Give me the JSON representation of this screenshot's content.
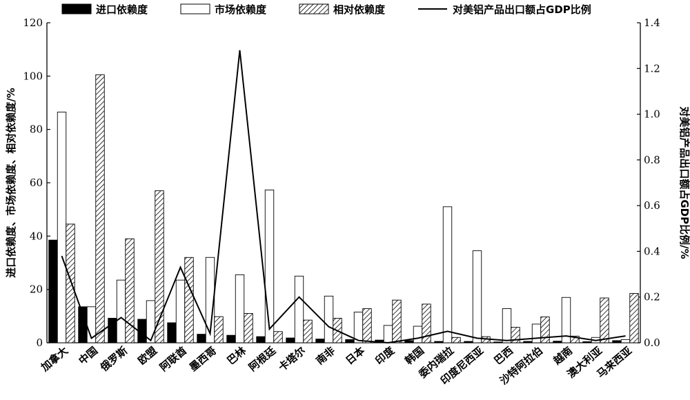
{
  "chart_data": {
    "type": "bar",
    "categories": [
      "加拿大",
      "中国",
      "俄罗斯",
      "欧盟",
      "阿联酋",
      "墨西哥",
      "巴林",
      "阿根廷",
      "卡塔尔",
      "南非",
      "日本",
      "印度",
      "韩国",
      "委内瑞拉",
      "印度尼西亚",
      "巴西",
      "沙特阿拉伯",
      "越南",
      "澳大利亚",
      "马来西亚"
    ],
    "series": [
      {
        "name": "进口依赖度",
        "style": "solid-black",
        "axis": "left",
        "values": [
          38.5,
          13.5,
          9.2,
          8.8,
          7.5,
          3.2,
          2.8,
          2.3,
          1.8,
          1.4,
          1.2,
          1.0,
          0.8,
          0.5,
          0.5,
          0.3,
          0.5,
          0.6,
          0.4,
          0.8
        ]
      },
      {
        "name": "市场依赖度",
        "style": "hollow",
        "axis": "left",
        "values": [
          86.5,
          13.5,
          23.5,
          15.8,
          23.5,
          32.0,
          25.5,
          57.3,
          25.0,
          17.5,
          11.5,
          6.5,
          6.2,
          51.0,
          34.5,
          12.8,
          7.0,
          17.0,
          2.0,
          1.2
        ]
      },
      {
        "name": "相对依赖度",
        "style": "hatched",
        "axis": "left",
        "values": [
          44.5,
          100.5,
          39.0,
          57.0,
          32.0,
          9.8,
          11.0,
          4.2,
          8.5,
          9.2,
          12.8,
          16.0,
          14.5,
          2.0,
          2.3,
          5.8,
          9.7,
          2.5,
          16.8,
          18.5
        ]
      },
      {
        "name": "对美铝产品出口额占GDP比例",
        "style": "line",
        "axis": "right",
        "values": [
          0.38,
          0.02,
          0.11,
          0.01,
          0.33,
          0.04,
          1.28,
          0.06,
          0.2,
          0.07,
          0.01,
          0.0,
          0.02,
          0.05,
          0.02,
          0.01,
          0.02,
          0.03,
          0.01,
          0.03
        ]
      }
    ],
    "ylabel": "进口依赖度、市场依赖度、相对依赖度/%",
    "y2label": "对美铝产品出口额占GDP比例/%",
    "ylim": [
      0,
      120
    ],
    "y2lim": [
      0,
      1.4
    ],
    "yticks": [
      "0",
      "20",
      "40",
      "60",
      "80",
      "100",
      "120"
    ],
    "y2ticks": [
      "0.0",
      "0.2",
      "0.4",
      "0.6",
      "0.8",
      "1.0",
      "1.2",
      "1.4"
    ],
    "grid": false,
    "legend_placement": "top"
  }
}
